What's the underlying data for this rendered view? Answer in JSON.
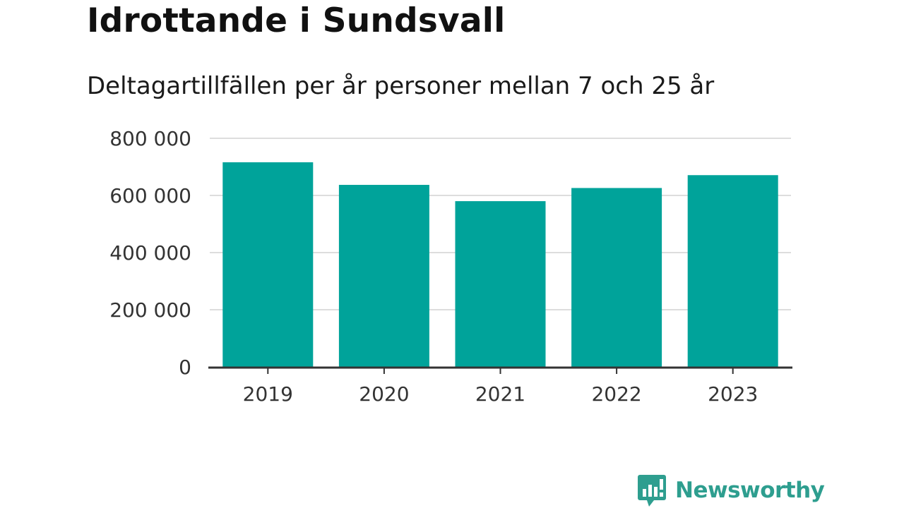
{
  "header": {
    "title": "Idrottande i Sundsvall",
    "subtitle": "Deltagartillfällen per år personer mellan 7 och 25 år"
  },
  "chart_data": {
    "type": "bar",
    "title": "Idrottande i Sundsvall",
    "subtitle": "Deltagartillfällen per år personer mellan 7 och 25 år",
    "categories": [
      "2019",
      "2020",
      "2021",
      "2022",
      "2023"
    ],
    "values": [
      716000,
      637000,
      580000,
      626000,
      671000
    ],
    "ylim": [
      0,
      800000
    ],
    "yticks": [
      0,
      200000,
      400000,
      600000,
      800000
    ],
    "ytick_labels": [
      "0",
      "200 000",
      "400 000",
      "600 000",
      "800 000"
    ],
    "xlabel": "",
    "ylabel": "",
    "grid": true,
    "bar_color": "#00a39a",
    "grid_color": "#dddddd",
    "axis_color": "#333333"
  },
  "branding": {
    "name": "Newsworthy",
    "color": "#2e9e8f",
    "icon": "bar-chart-speech-bubble-icon"
  }
}
